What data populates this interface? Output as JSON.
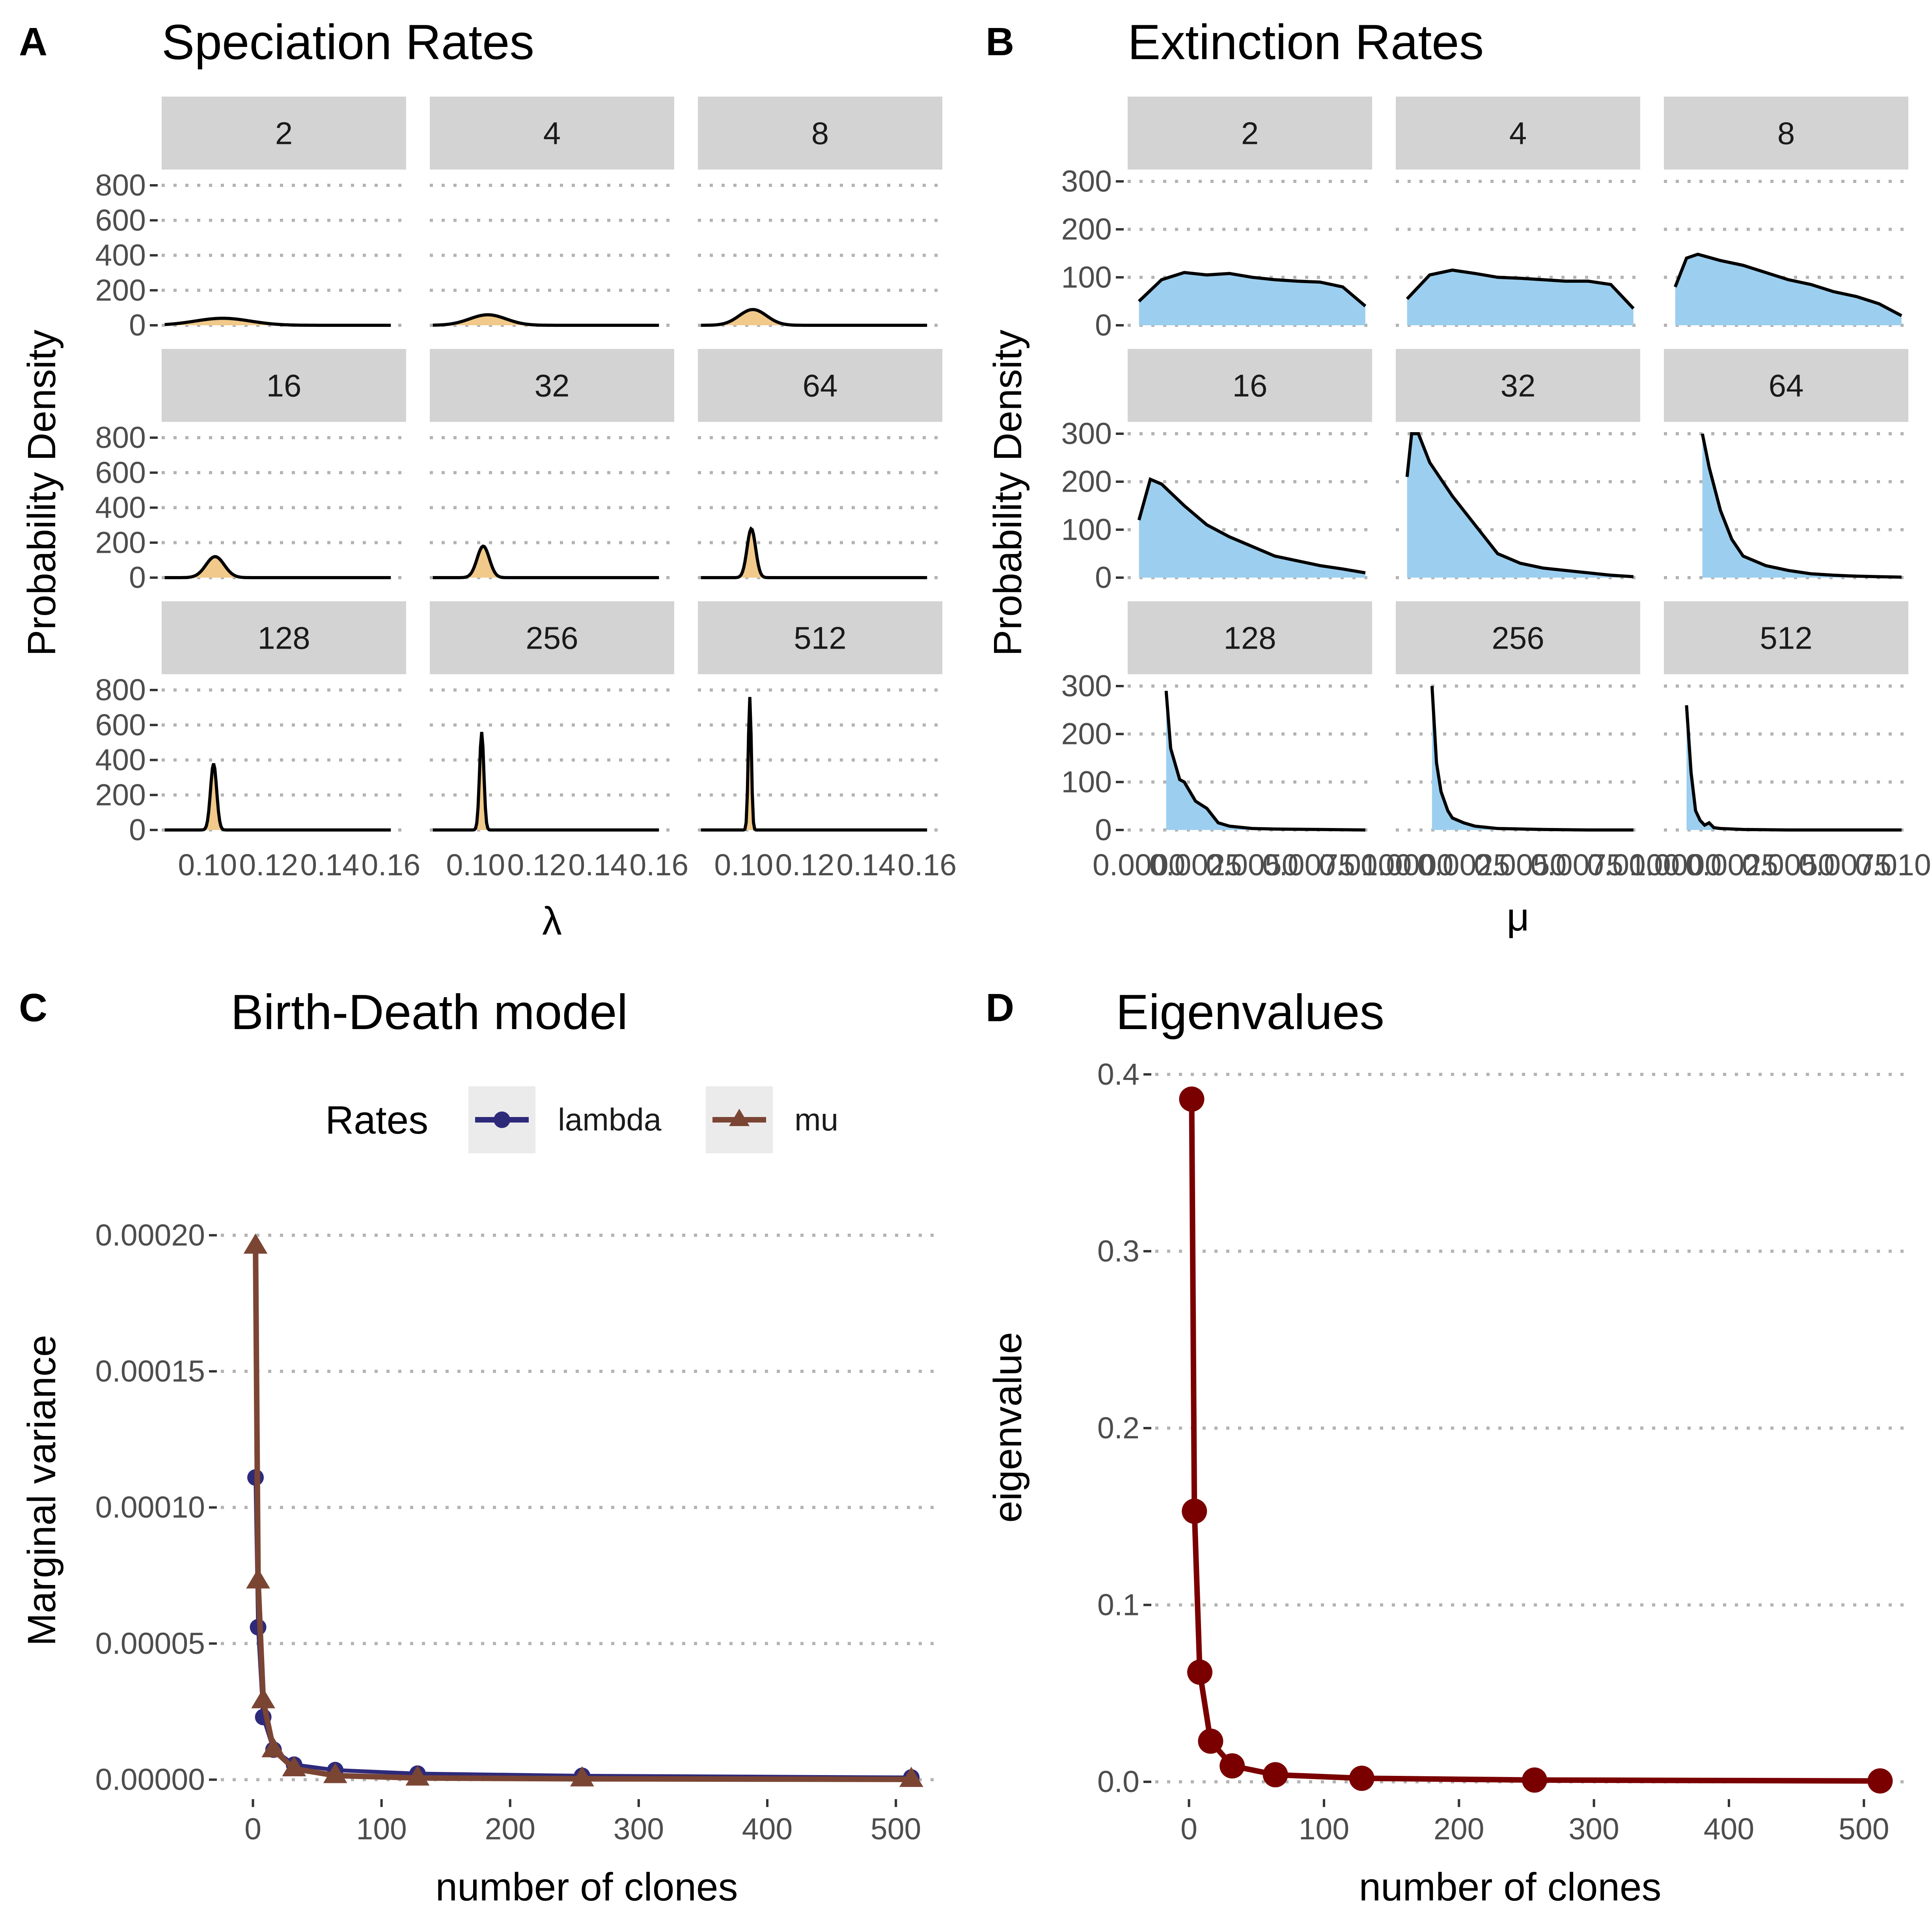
{
  "panels": {
    "A": {
      "letter": "A",
      "title": "Speciation Rates"
    },
    "B": {
      "letter": "B",
      "title": "Extinction Rates"
    },
    "C": {
      "letter": "C",
      "title": "Birth-Death model"
    },
    "D": {
      "letter": "D",
      "title": "Eigenvalues"
    }
  },
  "colors": {
    "speciation_fill": "#f1c98a",
    "extinction_fill": "#9ccfef",
    "lambda": "#2e2a7a",
    "mu": "#7b4534",
    "eigen": "#7a0000"
  },
  "chart_data": [
    {
      "id": "A",
      "type": "area",
      "title": "Speciation Rates",
      "xlabel": "λ",
      "ylabel": "Probability Density",
      "facets": [
        "2",
        "4",
        "8",
        "16",
        "32",
        "64",
        "128",
        "256",
        "512"
      ],
      "xlim": [
        0.085,
        0.165
      ],
      "xticks": [
        0.1,
        0.12,
        0.14,
        0.16
      ],
      "xtick_labels": [
        "0.10",
        "0.12",
        "0.14",
        "0.16"
      ],
      "ylim": [
        0,
        800
      ],
      "yticks": [
        0,
        200,
        400,
        600,
        800
      ],
      "series": [
        {
          "facet": "2",
          "peak_x": 0.105,
          "peak_y": 40,
          "sd": 0.009
        },
        {
          "facet": "4",
          "peak_x": 0.104,
          "peak_y": 60,
          "sd": 0.006
        },
        {
          "facet": "8",
          "peak_x": 0.103,
          "peak_y": 90,
          "sd": 0.0045
        },
        {
          "facet": "16",
          "peak_x": 0.1025,
          "peak_y": 120,
          "sd": 0.003
        },
        {
          "facet": "32",
          "peak_x": 0.1025,
          "peak_y": 180,
          "sd": 0.002
        },
        {
          "facet": "64",
          "peak_x": 0.1025,
          "peak_y": 280,
          "sd": 0.0014
        },
        {
          "facet": "128",
          "peak_x": 0.102,
          "peak_y": 380,
          "sd": 0.001
        },
        {
          "facet": "256",
          "peak_x": 0.102,
          "peak_y": 560,
          "sd": 0.0007
        },
        {
          "facet": "512",
          "peak_x": 0.102,
          "peak_y": 760,
          "sd": 0.0005
        }
      ]
    },
    {
      "id": "B",
      "type": "area",
      "title": "Extinction Rates",
      "xlabel": "μ",
      "ylabel": "Probability Density",
      "facets": [
        "2",
        "4",
        "8",
        "16",
        "32",
        "64",
        "128",
        "256",
        "512"
      ],
      "xlim": [
        -0.0005,
        0.0103
      ],
      "xticks": [
        0.0,
        0.0025,
        0.005,
        0.0075,
        0.01
      ],
      "xtick_labels": [
        "0.0000",
        "0.0025",
        "0.0050",
        "0.0075",
        "0.0100"
      ],
      "ylim": [
        0,
        300
      ],
      "yticks": [
        0,
        100,
        200,
        300
      ],
      "series": [
        {
          "facet": "2",
          "x": [
            0.0,
            0.001,
            0.002,
            0.003,
            0.004,
            0.005,
            0.006,
            0.007,
            0.008,
            0.009,
            0.01
          ],
          "y": [
            50,
            95,
            110,
            105,
            108,
            100,
            95,
            92,
            90,
            80,
            40
          ]
        },
        {
          "facet": "4",
          "x": [
            0.0,
            0.001,
            0.002,
            0.003,
            0.004,
            0.005,
            0.006,
            0.007,
            0.008,
            0.009,
            0.01
          ],
          "y": [
            55,
            105,
            115,
            108,
            100,
            98,
            95,
            92,
            92,
            85,
            35
          ]
        },
        {
          "facet": "8",
          "x": [
            0.0,
            0.0005,
            0.001,
            0.002,
            0.003,
            0.004,
            0.005,
            0.006,
            0.007,
            0.008,
            0.009,
            0.01
          ],
          "y": [
            80,
            140,
            148,
            135,
            125,
            110,
            95,
            85,
            70,
            60,
            45,
            20
          ]
        },
        {
          "facet": "16",
          "x": [
            0.0,
            0.0005,
            0.001,
            0.002,
            0.003,
            0.004,
            0.005,
            0.006,
            0.007,
            0.008,
            0.009,
            0.01
          ],
          "y": [
            120,
            205,
            195,
            150,
            110,
            85,
            65,
            45,
            35,
            25,
            18,
            10
          ]
        },
        {
          "facet": "32",
          "x": [
            0.0,
            0.0002,
            0.0005,
            0.001,
            0.002,
            0.003,
            0.004,
            0.005,
            0.006,
            0.007,
            0.008,
            0.009,
            0.01
          ],
          "y": [
            210,
            300,
            300,
            240,
            170,
            110,
            50,
            30,
            20,
            15,
            10,
            5,
            2
          ]
        },
        {
          "facet": "64",
          "x": [
            0.0012,
            0.0015,
            0.002,
            0.0025,
            0.003,
            0.004,
            0.005,
            0.006,
            0.007,
            0.008,
            0.009,
            0.01
          ],
          "y": [
            300,
            230,
            140,
            80,
            45,
            25,
            15,
            8,
            5,
            3,
            2,
            1
          ]
        },
        {
          "facet": "128",
          "x": [
            0.0012,
            0.0014,
            0.0018,
            0.002,
            0.0025,
            0.003,
            0.0035,
            0.004,
            0.005,
            0.006,
            0.008,
            0.01
          ],
          "y": [
            290,
            170,
            105,
            100,
            60,
            45,
            15,
            8,
            3,
            2,
            1,
            0
          ]
        },
        {
          "facet": "256",
          "x": [
            0.0011,
            0.0013,
            0.0015,
            0.0018,
            0.002,
            0.0025,
            0.003,
            0.004,
            0.006,
            0.008,
            0.01
          ],
          "y": [
            300,
            140,
            80,
            40,
            25,
            15,
            8,
            3,
            1,
            0,
            0
          ]
        },
        {
          "facet": "512",
          "x": [
            0.0005,
            0.0007,
            0.0009,
            0.0011,
            0.0013,
            0.0015,
            0.0017,
            0.002,
            0.003,
            0.005,
            0.01
          ],
          "y": [
            260,
            120,
            40,
            20,
            10,
            15,
            5,
            3,
            1,
            0,
            0
          ]
        }
      ]
    },
    {
      "id": "C",
      "type": "line",
      "title": "Birth-Death model",
      "xlabel": "number of clones",
      "ylabel": "Marginal variance",
      "legend_title": "Rates",
      "legend_position": "top",
      "xlim": [
        -25,
        530
      ],
      "xticks": [
        0,
        100,
        200,
        300,
        400,
        500
      ],
      "ylim": [
        -6e-06,
        0.000212
      ],
      "yticks": [
        0.0,
        5e-05,
        0.0001,
        0.00015,
        0.0002
      ],
      "ytick_labels": [
        "0.00000",
        "0.00005",
        "0.00010",
        "0.00015",
        "0.00020"
      ],
      "series": [
        {
          "name": "lambda",
          "marker": "circle",
          "x": [
            2,
            4,
            8,
            16,
            32,
            64,
            128,
            256,
            512
          ],
          "y": [
            0.000111,
            5.6e-05,
            2.3e-05,
            1.1e-05,
            5.5e-06,
            3.5e-06,
            2.2e-06,
            1.4e-06,
            8e-07
          ]
        },
        {
          "name": "mu",
          "marker": "triangle",
          "x": [
            2,
            4,
            8,
            16,
            32,
            64,
            128,
            256,
            512
          ],
          "y": [
            0.000196,
            7.3e-05,
            2.9e-05,
            1.1e-05,
            4e-06,
            1.5e-06,
            6e-07,
            3e-07,
            1e-07
          ]
        }
      ]
    },
    {
      "id": "D",
      "type": "line",
      "title": "Eigenvalues",
      "xlabel": "number of clones",
      "ylabel": "eigenvalue",
      "xlim": [
        -25,
        530
      ],
      "xticks": [
        0,
        100,
        200,
        300,
        400,
        500
      ],
      "ylim": [
        -0.008,
        0.41
      ],
      "yticks": [
        0.0,
        0.1,
        0.2,
        0.3,
        0.4
      ],
      "ytick_labels": [
        "0.0",
        "0.1",
        "0.2",
        "0.3",
        "0.4"
      ],
      "series": [
        {
          "name": "eigenvalue",
          "marker": "circle",
          "x": [
            2,
            4,
            8,
            16,
            32,
            64,
            128,
            256,
            512
          ],
          "y": [
            0.386,
            0.153,
            0.062,
            0.023,
            0.009,
            0.004,
            0.002,
            0.001,
            0.0005
          ]
        }
      ]
    }
  ]
}
